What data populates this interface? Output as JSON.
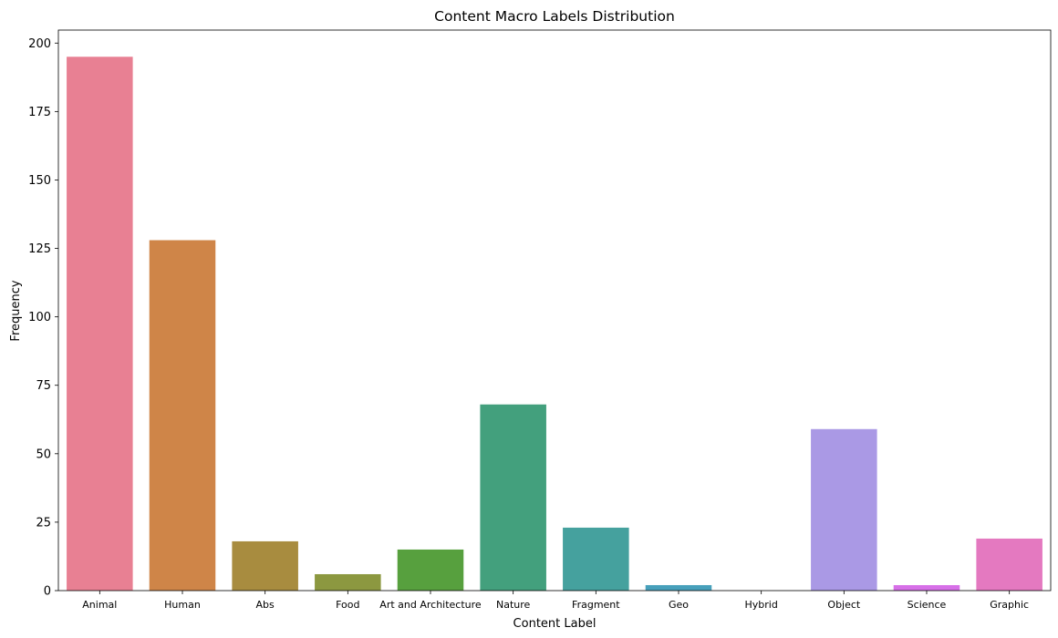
{
  "chart_data": {
    "type": "bar",
    "title": "Content Macro Labels Distribution",
    "xlabel": "Content Label",
    "ylabel": "Frequency",
    "categories": [
      "Animal",
      "Human",
      "Abs",
      "Food",
      "Art and Architecture",
      "Nature",
      "Fragment",
      "Geo",
      "Hybrid",
      "Object",
      "Science",
      "Graphic"
    ],
    "values": [
      195,
      128,
      18,
      6,
      15,
      68,
      23,
      2,
      0,
      59,
      2,
      19
    ],
    "colors": [
      "#e88093",
      "#cf8548",
      "#a88c3f",
      "#8c9840",
      "#57a03e",
      "#43a07d",
      "#45a19e",
      "#47a0bb",
      "#6ca0e2",
      "#aa99e5",
      "#d770e8",
      "#e479c0"
    ],
    "ylim": [
      0,
      204.75
    ],
    "yticks": [
      0,
      25,
      50,
      75,
      100,
      125,
      150,
      175,
      200
    ],
    "grid": false,
    "legend": "none"
  }
}
